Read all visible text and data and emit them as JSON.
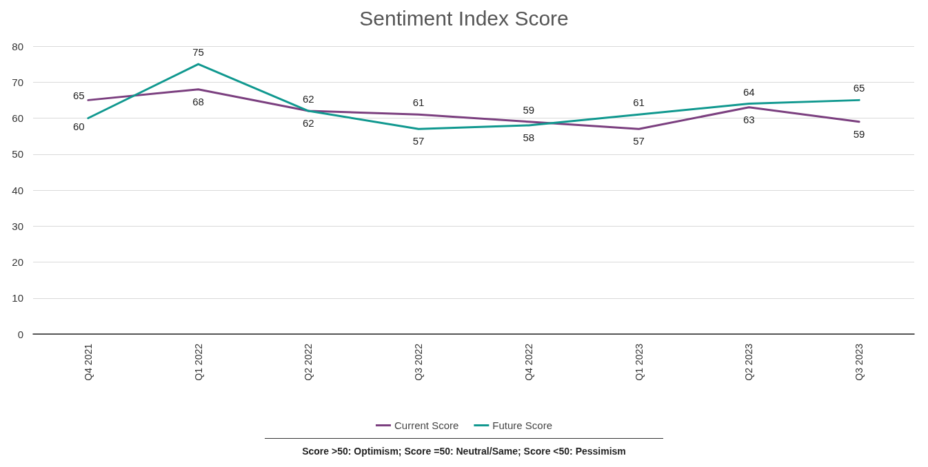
{
  "chart_data": {
    "type": "line",
    "title": "Sentiment Index Score",
    "categories": [
      "Q4 2021",
      "Q1 2022",
      "Q2 2022",
      "Q3 2022",
      "Q4 2022",
      "Q1 2023",
      "Q2 2023",
      "Q3 2023"
    ],
    "series": [
      {
        "name": "Current Score",
        "color": "#7b3f7f",
        "values": [
          65,
          68,
          62,
          61,
          59,
          57,
          63,
          59
        ]
      },
      {
        "name": "Future Score",
        "color": "#10988f",
        "values": [
          60,
          75,
          62,
          57,
          58,
          61,
          64,
          65
        ]
      }
    ],
    "ylim": [
      0,
      80
    ],
    "yticks": [
      0,
      10,
      20,
      30,
      40,
      50,
      60,
      70,
      80
    ],
    "grid": "y",
    "legend": "bottom",
    "marker": "none",
    "line_style": "solid",
    "data_labels": true,
    "annotations": [
      "Score >50: Optimism; Score =50: Neutral/Same; Score <50: Pessimism"
    ]
  }
}
